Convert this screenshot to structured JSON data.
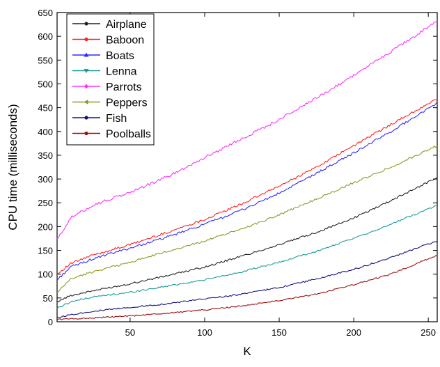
{
  "chart_data": {
    "type": "line",
    "title": "",
    "xlabel": "K",
    "ylabel": "CPU time (milliseconds)",
    "xlim": [
      1,
      256
    ],
    "ylim": [
      0,
      650
    ],
    "xticks": [
      50,
      100,
      150,
      200,
      250
    ],
    "xtick_labels": [
      "50",
      "100",
      "150",
      "200",
      "250"
    ],
    "yticks": [
      0,
      50,
      100,
      150,
      200,
      250,
      300,
      350,
      400,
      450,
      500,
      550,
      600,
      650
    ],
    "ytick_labels": [
      "0",
      "50",
      "100",
      "150",
      "200",
      "250",
      "300",
      "350",
      "400",
      "450",
      "500",
      "550",
      "600",
      "650"
    ],
    "grid": false,
    "legend_position": "top-left",
    "x": [
      1,
      10,
      25,
      50,
      75,
      100,
      125,
      150,
      175,
      200,
      225,
      256
    ],
    "series": [
      {
        "name": "Airplane",
        "color": "#222222",
        "marker": "circle",
        "values": [
          42,
          55,
          65,
          80,
          97,
          115,
          138,
          162,
          188,
          218,
          255,
          303
        ]
      },
      {
        "name": "Baboon",
        "color": "#ff2020",
        "marker": "circle",
        "values": [
          100,
          122,
          140,
          162,
          188,
          215,
          248,
          285,
          325,
          370,
          415,
          468
        ]
      },
      {
        "name": "Boats",
        "color": "#2a2aff",
        "marker": "triangle",
        "values": [
          88,
          115,
          132,
          155,
          178,
          205,
          235,
          270,
          312,
          355,
          400,
          460
        ]
      },
      {
        "name": "Lenna",
        "color": "#1a9a9a",
        "marker": "triangle-down",
        "values": [
          28,
          42,
          52,
          62,
          75,
          88,
          105,
          125,
          148,
          175,
          205,
          245
        ]
      },
      {
        "name": "Parrots",
        "color": "#ff30ff",
        "marker": "diamond",
        "values": [
          172,
          218,
          245,
          272,
          305,
          345,
          385,
          425,
          470,
          518,
          568,
          632
        ]
      },
      {
        "name": "Peppers",
        "color": "#8a9a20",
        "marker": "triangle-left",
        "values": [
          60,
          90,
          105,
          125,
          148,
          170,
          195,
          225,
          258,
          292,
          325,
          370
        ]
      },
      {
        "name": "Fish",
        "color": "#101080",
        "marker": "circle",
        "values": [
          8,
          15,
          22,
          30,
          38,
          48,
          58,
          72,
          90,
          110,
          135,
          170
        ]
      },
      {
        "name": "Poolballs",
        "color": "#9a1010",
        "marker": "circle",
        "values": [
          5,
          6,
          8,
          12,
          18,
          25,
          33,
          45,
          58,
          78,
          100,
          140
        ]
      }
    ]
  }
}
